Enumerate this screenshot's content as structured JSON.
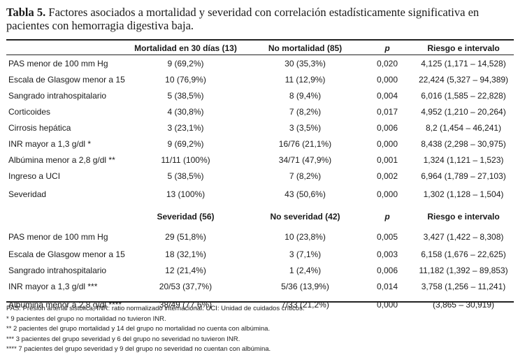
{
  "caption": {
    "label": "Tabla 5.",
    "text": "Factores asociados a mortalidad y severidad con correlación estadísticamente significativa en pacientes con hemorragia digestiva baja."
  },
  "mortality_section": {
    "headers": [
      "",
      "Mortalidad en 30 días (13)",
      "No mortalidad (85)",
      "p",
      "Riesgo e intervalo"
    ],
    "rows": [
      [
        "PAS menor de 100 mm Hg",
        "9 (69,2%)",
        "30 (35,3%)",
        "0,020",
        "4,125 (1,171 – 14,528)"
      ],
      [
        "Escala de Glasgow menor a 15",
        "10 (76,9%)",
        "11 (12,9%)",
        "0,000",
        "22,424 (5,327 – 94,389)"
      ],
      [
        "Sangrado intrahospitalario",
        "5 (38,5%)",
        "8 (9,4%)",
        "0,004",
        "6,016 (1,585 – 22,828)"
      ],
      [
        "Corticoides",
        "4 (30,8%)",
        "7 (8,2%)",
        "0,017",
        "4,952 (1,210 – 20,264)"
      ],
      [
        "Cirrosis hepática",
        "3 (23,1%)",
        "3 (3,5%)",
        "0,006",
        "8,2 (1,454 – 46,241)"
      ],
      [
        "INR mayor a 1,3 g/dl *",
        "9 (69,2%)",
        "16/76 (21,1%)",
        "0,000",
        "8,438 (2,298 – 30,975)"
      ],
      [
        "Albúmina menor a 2,8 g/dl **",
        "11/11 (100%)",
        "34/71 (47,9%)",
        "0,001",
        "1,324 (1,121 – 1,523)"
      ],
      [
        "Ingreso a UCI",
        "5 (38,5%)",
        "7 (8,2%)",
        "0,002",
        "6,964 (1,789 – 27,103)"
      ],
      [
        "Severidad",
        "13 (100%)",
        "43 (50,6%)",
        "0,000",
        "1,302 (1,128 – 1,504)"
      ]
    ]
  },
  "severity_section": {
    "headers": [
      "",
      "Severidad (56)",
      "No severidad (42)",
      "p",
      "Riesgo e intervalo"
    ],
    "rows": [
      [
        "PAS menor de 100 mm Hg",
        "29 (51,8%)",
        "10 (23,8%)",
        "0,005",
        "3,427 (1,422 – 8,308)"
      ],
      [
        "Escala de Glasgow menor a 15",
        "18 (32,1%)",
        "3 (7,1%)",
        "0,003",
        "6,158 (1,676 – 22,625)"
      ],
      [
        "Sangrado intrahospitalario",
        "12 (21,4%)",
        "1 (2,4%)",
        "0,006",
        "11,182 (1,392 – 89,853)"
      ],
      [
        "INR mayor a 1,3 g/dl ***",
        "20/53 (37,7%)",
        "5/36 (13,9%)",
        "0,014",
        "3,758 (1,256 – 11,241)"
      ],
      [
        "Albúmina menor a 2,8 g/dl ****",
        "38/49 (77,6%)",
        "7/33 (21,2%)",
        "0,000",
        "(3,865 – 30,919)"
      ]
    ]
  },
  "footnotes": [
    "PAS: Presión arterial sistólica, INR: ratio normalizado internacional. UCI: Unidad de cuidados críticos.",
    "* 9 pacientes del grupo no mortalidad no tuvieron INR.",
    "** 2 pacientes del grupo mortalidad y 14 del grupo no mortalidad no cuenta con albúmina.",
    "*** 3 pacientes del grupo severidad y 6 del grupo no severidad no tuvieron INR.",
    "**** 7 pacientes del grupo severidad y 9 del grupo no severidad no cuentan con albúmina."
  ]
}
